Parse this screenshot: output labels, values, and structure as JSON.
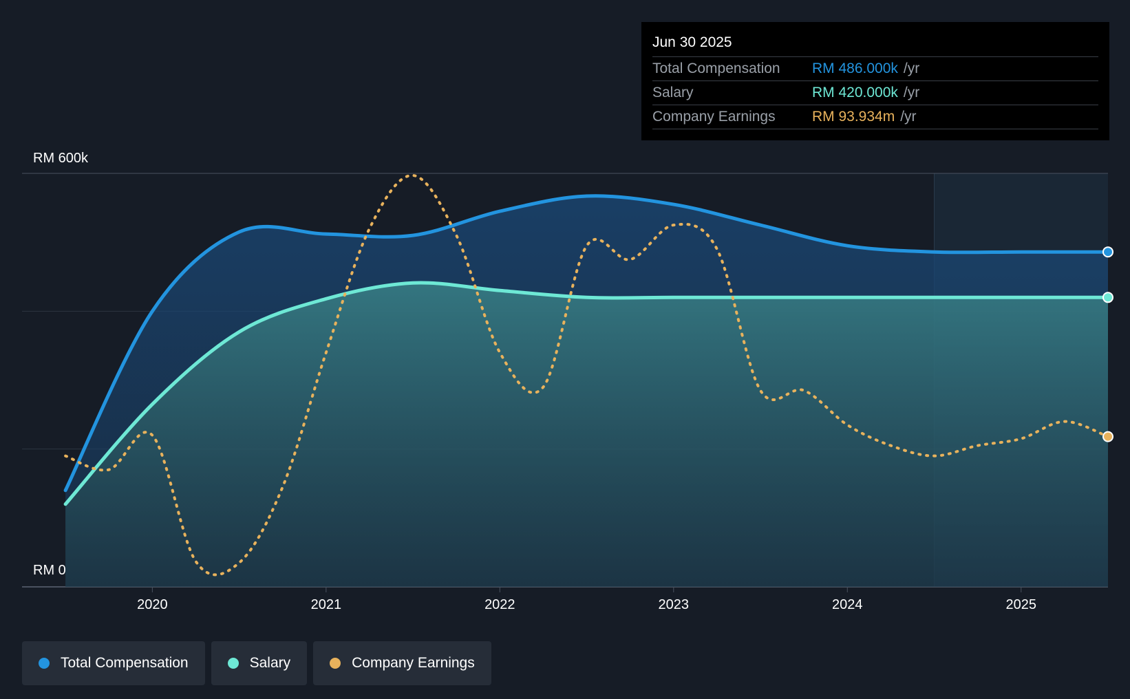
{
  "tooltip": {
    "date": "Jun 30 2025",
    "rows": [
      {
        "label": "Total Compensation",
        "value": "RM 486.000k",
        "unit": "/yr",
        "color": "#2394df"
      },
      {
        "label": "Salary",
        "value": "RM 420.000k",
        "unit": "/yr",
        "color": "#6ee8d5"
      },
      {
        "label": "Company Earnings",
        "value": "RM 93.934m",
        "unit": "/yr",
        "color": "#e8b25c"
      }
    ]
  },
  "legend": {
    "items": [
      {
        "label": "Total Compensation",
        "color": "#2394df"
      },
      {
        "label": "Salary",
        "color": "#6ee8d5"
      },
      {
        "label": "Company Earnings",
        "color": "#e8b25c"
      }
    ]
  },
  "chart_data": {
    "type": "area",
    "ylabel_top": "RM 600k",
    "ylabel_bottom": "RM 0",
    "ylim": [
      0,
      600
    ],
    "y_unit": "RM k",
    "x_ticks": [
      {
        "value": 2020,
        "label": "2020"
      },
      {
        "value": 2021,
        "label": "2021"
      },
      {
        "value": 2022,
        "label": "2022"
      },
      {
        "value": 2023,
        "label": "2023"
      },
      {
        "value": 2024,
        "label": "2024"
      },
      {
        "value": 2025,
        "label": "2025"
      }
    ],
    "xlim": [
      2019.25,
      2025.5
    ],
    "forecast_start": 2024.5,
    "series": [
      {
        "name": "Total Compensation",
        "color": "#2394df",
        "x": [
          2019.5,
          2020.0,
          2020.5,
          2021.0,
          2021.5,
          2022.0,
          2022.5,
          2023.0,
          2023.5,
          2024.0,
          2024.5,
          2025.0,
          2025.5
        ],
        "values": [
          140,
          400,
          515,
          512,
          510,
          545,
          567,
          555,
          525,
          495,
          486,
          486,
          486
        ]
      },
      {
        "name": "Salary",
        "color": "#6ee8d5",
        "x": [
          2019.5,
          2020.0,
          2020.5,
          2021.0,
          2021.5,
          2022.0,
          2022.5,
          2023.0,
          2023.5,
          2024.0,
          2024.5,
          2025.0,
          2025.5
        ],
        "values": [
          120,
          265,
          370,
          418,
          441,
          430,
          420,
          420,
          420,
          420,
          420,
          420,
          420
        ]
      },
      {
        "name": "Company Earnings",
        "color": "#e8b25c",
        "dashed": true,
        "note": "values expressed on the same scale as the chart (k-equivalent)",
        "x": [
          2019.5,
          2019.75,
          2020.0,
          2020.25,
          2020.5,
          2020.75,
          2021.0,
          2021.25,
          2021.5,
          2021.75,
          2022.0,
          2022.25,
          2022.5,
          2022.75,
          2023.0,
          2023.25,
          2023.5,
          2023.75,
          2024.0,
          2024.25,
          2024.5,
          2024.75,
          2025.0,
          2025.25,
          2025.5
        ],
        "values": [
          190,
          170,
          220,
          37,
          35,
          145,
          340,
          520,
          597,
          510,
          340,
          290,
          495,
          475,
          525,
          490,
          285,
          285,
          235,
          205,
          190,
          205,
          215,
          240,
          218
        ]
      }
    ]
  }
}
